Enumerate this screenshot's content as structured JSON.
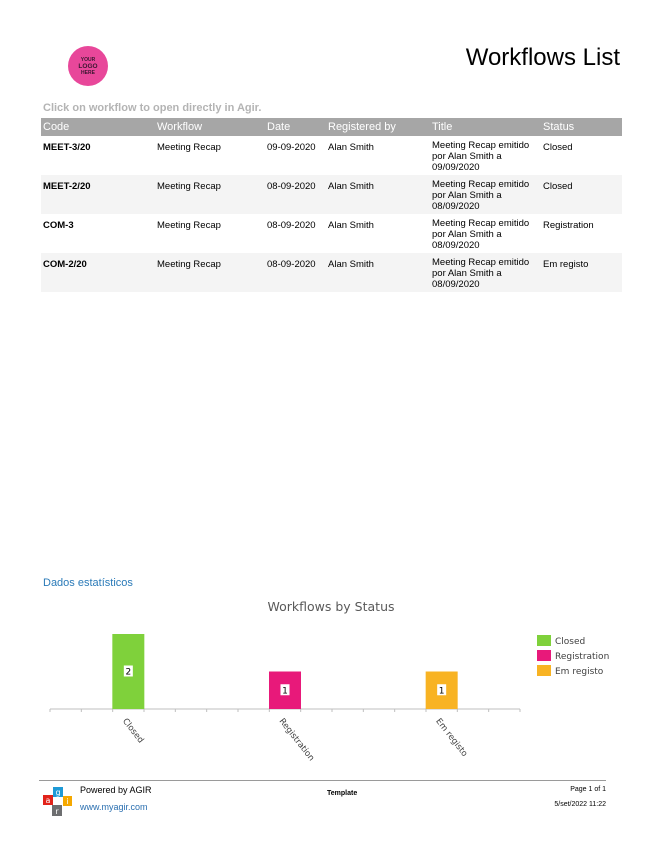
{
  "logo": {
    "line1": "YOUR",
    "line2": "LOGO",
    "line3": "HERE"
  },
  "header": {
    "title": "Workflows List"
  },
  "hint": "Click on workflow to open directly in Agir.",
  "table": {
    "columns": [
      "Code",
      "Workflow",
      "Date",
      "Registered by",
      "Title",
      "Status"
    ],
    "rows": [
      {
        "code": "MEET-3/20",
        "workflow": "Meeting Recap",
        "date": "09-09-2020",
        "registered_by": "Alan Smith",
        "title": [
          "Meeting Recap emitido",
          "por Alan Smith a",
          "09/09/2020"
        ],
        "status": "Closed"
      },
      {
        "code": "MEET-2/20",
        "workflow": "Meeting Recap",
        "date": "08-09-2020",
        "registered_by": "Alan Smith",
        "title": [
          "Meeting Recap emitido",
          "por Alan Smith a",
          "08/09/2020"
        ],
        "status": "Closed"
      },
      {
        "code": "COM-3",
        "workflow": "Meeting Recap",
        "date": "08-09-2020",
        "registered_by": "Alan Smith",
        "title": [
          "Meeting Recap emitido",
          "por Alan Smith a",
          "08/09/2020"
        ],
        "status": "Registration"
      },
      {
        "code": "COM-2/20",
        "workflow": "Meeting Recap",
        "date": "08-09-2020",
        "registered_by": "Alan Smith",
        "title": [
          "Meeting Recap emitido",
          "por Alan Smith a",
          "08/09/2020"
        ],
        "status": "Em registo"
      }
    ]
  },
  "stats": {
    "section_title": "Dados estatísticos"
  },
  "chart_data": {
    "type": "bar",
    "title": "Workflows by Status",
    "categories": [
      "Closed",
      "Registration",
      "Em registo"
    ],
    "values": [
      2,
      1,
      1
    ],
    "colors": [
      "#7fd13b",
      "#e8197a",
      "#f8b323"
    ],
    "ylim": [
      0,
      2
    ],
    "grid": false,
    "legend": "right",
    "data_labels": true
  },
  "footer": {
    "powered": "Powered by AGIR",
    "site": "www.myagir.com",
    "template": "Template",
    "page": "Page 1 of 1",
    "datetime": "5/set/2022 11:22",
    "agir_letters": [
      "a",
      "g",
      "i",
      "r"
    ]
  }
}
